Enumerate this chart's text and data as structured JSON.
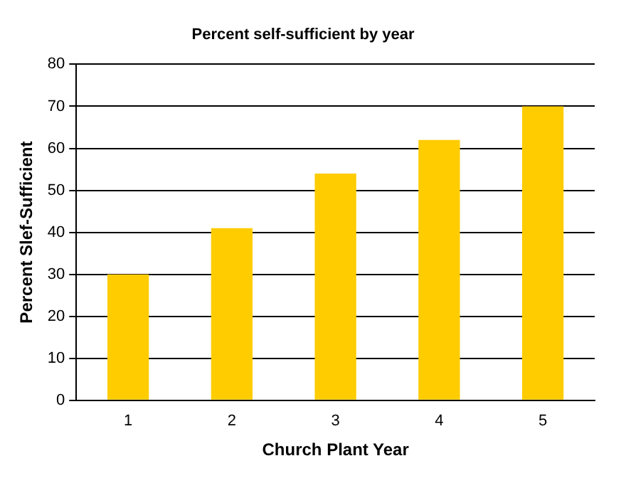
{
  "chart_data": {
    "type": "bar",
    "title": "Percent self-sufficient by year",
    "xlabel": "Church Plant Year",
    "ylabel": "Percent Slef-Sufficient",
    "categories": [
      "1",
      "2",
      "3",
      "4",
      "5"
    ],
    "values": [
      30,
      41,
      54,
      62,
      70
    ],
    "color": "#ffcc00",
    "ylim": [
      0,
      80
    ],
    "yticks": [
      0,
      10,
      20,
      30,
      40,
      50,
      60,
      70,
      80
    ],
    "grid": "y",
    "legend": false
  }
}
